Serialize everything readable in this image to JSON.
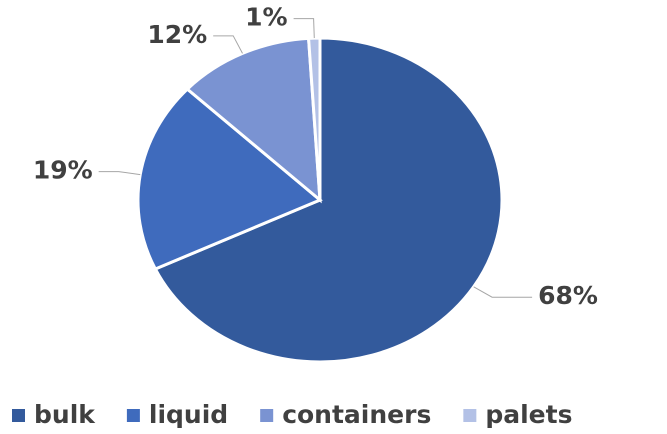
{
  "chart_data": {
    "type": "pie",
    "categories": [
      "bulk",
      "liquid",
      "containers",
      "palets"
    ],
    "values": [
      68,
      19,
      12,
      1
    ],
    "value_labels": [
      "68%",
      "19%",
      "12%",
      "1%"
    ],
    "colors": [
      "#335a9c",
      "#3f6bbd",
      "#7a93d2",
      "#b3c1e6"
    ]
  }
}
